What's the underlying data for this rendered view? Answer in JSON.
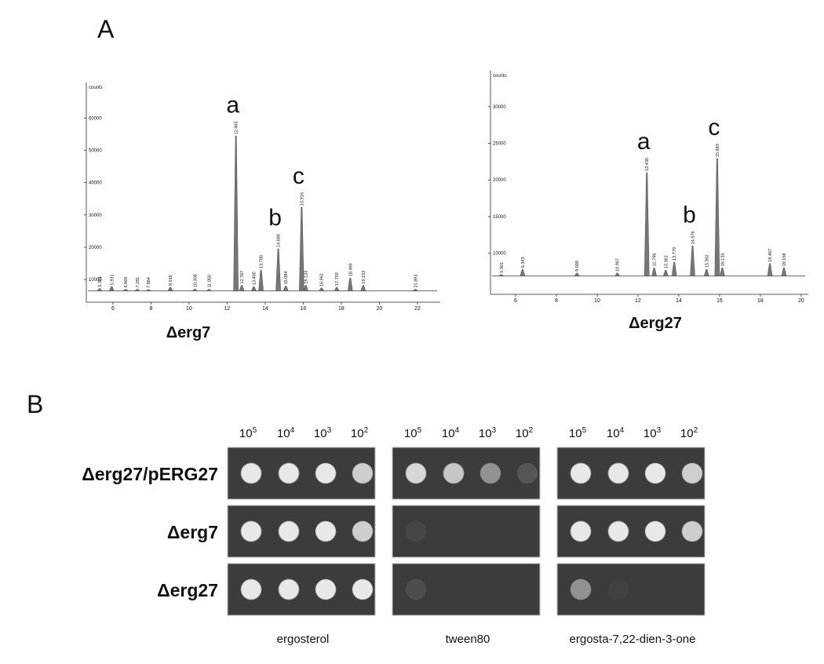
{
  "panel_a": {
    "label": "A",
    "chromatograms": [
      {
        "title": "Δerg7",
        "y_axis_label": "counts",
        "xlim": [
          4.6,
          23.2
        ],
        "ylim": [
          3000,
          71000
        ],
        "xticks": [
          6,
          8,
          10,
          12,
          14,
          16,
          18,
          20,
          22
        ],
        "yticks": [
          10000,
          20000,
          30000,
          40000,
          50000,
          60000
        ],
        "baseline": 6500,
        "peaks": [
          {
            "x": 5.301,
            "label": "5.301",
            "height": 7200
          },
          {
            "x": 5.931,
            "label": "5.931",
            "height": 7800
          },
          {
            "x": 6.669,
            "label": "6.669",
            "height": 7000
          },
          {
            "x": 7.281,
            "label": "7.281",
            "height": 7000
          },
          {
            "x": 7.864,
            "label": "7.864",
            "height": 6900
          },
          {
            "x": 9.016,
            "label": "9.016",
            "height": 7600
          },
          {
            "x": 10.308,
            "label": "10.308",
            "height": 7100
          },
          {
            "x": 11.05,
            "label": "11.050",
            "height": 7000
          },
          {
            "x": 12.463,
            "label": "12.463",
            "height": 54400,
            "annotation": "a"
          },
          {
            "x": 12.767,
            "label": "12.767",
            "height": 8200
          },
          {
            "x": 13.4,
            "label": "13.400",
            "height": 7800
          },
          {
            "x": 13.78,
            "label": "13.780",
            "height": 13000
          },
          {
            "x": 14.688,
            "label": "14.688",
            "height": 19500,
            "annotation": "b"
          },
          {
            "x": 15.084,
            "label": "15.084",
            "height": 8000
          },
          {
            "x": 15.916,
            "label": "15.916",
            "height": 32400,
            "annotation": "c"
          },
          {
            "x": 16.133,
            "label": "16.133",
            "height": 8200
          },
          {
            "x": 16.961,
            "label": "16.961",
            "height": 7400
          },
          {
            "x": 17.759,
            "label": "17.759",
            "height": 7600
          },
          {
            "x": 18.469,
            "label": "18.469",
            "height": 10500
          },
          {
            "x": 19.153,
            "label": "19.153",
            "height": 8200
          },
          {
            "x": 21.893,
            "label": "21.893",
            "height": 7000
          }
        ]
      },
      {
        "title": "Δerg27",
        "y_axis_label": "counts",
        "xlim": [
          4.77,
          20.35
        ],
        "ylim": [
          4400,
          34900
        ],
        "xticks": [
          6,
          8,
          10,
          12,
          14,
          16,
          18,
          20
        ],
        "yticks": [
          10000,
          15000,
          20000,
          25000,
          30000
        ],
        "baseline": 6900,
        "peaks": [
          {
            "x": 5.301,
            "label": "5.301",
            "height": 7100
          },
          {
            "x": 6.343,
            "label": "6.343",
            "height": 7800
          },
          {
            "x": 9.009,
            "label": "9.009",
            "height": 7300
          },
          {
            "x": 10.987,
            "label": "10.987",
            "height": 7300
          },
          {
            "x": 12.435,
            "label": "12.435",
            "height": 21000,
            "annotation": "a"
          },
          {
            "x": 12.796,
            "label": "12.796",
            "height": 8000
          },
          {
            "x": 13.362,
            "label": "13.362",
            "height": 7700
          },
          {
            "x": 13.779,
            "label": "13.779",
            "height": 8800
          },
          {
            "x": 14.676,
            "label": "14.676",
            "height": 11000,
            "annotation": "b"
          },
          {
            "x": 15.362,
            "label": "15.362",
            "height": 7800
          },
          {
            "x": 15.883,
            "label": "15.883",
            "height": 22900,
            "annotation": "c"
          },
          {
            "x": 16.133,
            "label": "16.133",
            "height": 8000
          },
          {
            "x": 18.467,
            "label": "18.467",
            "height": 8600
          },
          {
            "x": 19.158,
            "label": "19.158",
            "height": 8000
          }
        ]
      }
    ]
  },
  "panel_b": {
    "label": "B",
    "dilutions": [
      {
        "base": "10",
        "exponent": "5"
      },
      {
        "base": "10",
        "exponent": "4"
      },
      {
        "base": "10",
        "exponent": "3"
      },
      {
        "base": "10",
        "exponent": "2"
      }
    ],
    "strains": [
      "Δerg27/pERG27",
      "Δerg7",
      "Δerg27"
    ],
    "media": [
      "ergosterol",
      "tween80",
      "ergosta-7,22-dien-3-one"
    ]
  }
}
